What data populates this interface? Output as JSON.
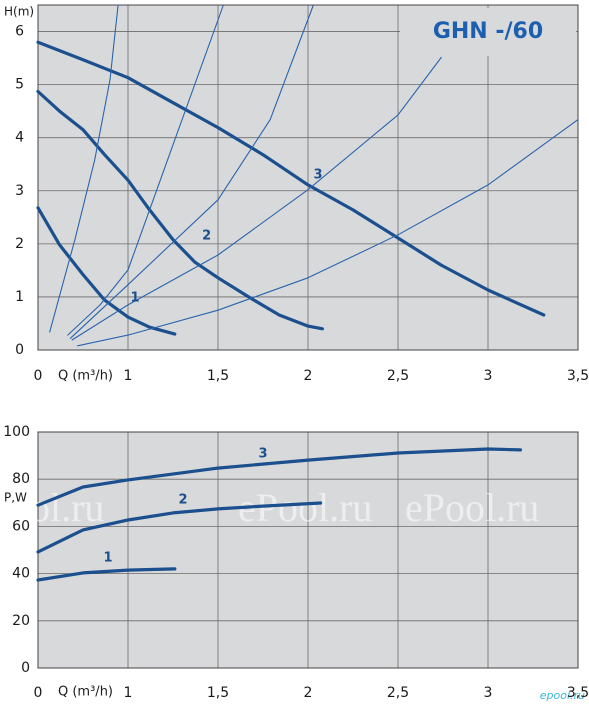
{
  "chart_data": [
    {
      "type": "line",
      "title": "GHN -/60",
      "ylabel": "H(m)",
      "xlabel": "Q (m³/h)",
      "xlim": [
        0,
        3.5
      ],
      "ylim": [
        0,
        6.5
      ],
      "xticks": [
        0,
        1,
        {
          "value": 1.5,
          "label": "1,5"
        },
        2,
        {
          "value": 2.5,
          "label": "2,5"
        },
        3,
        {
          "value": 3.5,
          "label": "3,5"
        }
      ],
      "yticks": [
        0,
        1,
        2,
        3,
        4,
        5,
        6
      ],
      "grid": true,
      "series": [
        {
          "name": "1",
          "color": "#1b4f8e",
          "x": [
            0,
            0.24,
            0.5,
            0.74,
            1.0,
            1.12,
            1.26
          ],
          "values": [
            2.68,
            1.98,
            1.42,
            0.94,
            0.62,
            0.43,
            0.3
          ]
        },
        {
          "name": "2",
          "color": "#1b4f8e",
          "x": [
            0,
            0.24,
            0.5,
            0.74,
            1.0,
            1.12,
            1.25,
            1.37,
            1.5,
            1.68,
            1.84,
            2.0,
            2.08
          ],
          "values": [
            4.87,
            4.5,
            4.15,
            3.68,
            3.2,
            2.64,
            2.08,
            1.66,
            1.36,
            0.98,
            0.66,
            0.45,
            0.4
          ]
        },
        {
          "name": "3",
          "color": "#1b4f8e",
          "x": [
            0,
            0.5,
            1.0,
            1.25,
            1.5,
            1.75,
            2.0,
            2.25,
            2.5,
            2.74,
            3.0,
            3.31
          ],
          "values": [
            5.8,
            5.47,
            5.13,
            4.66,
            4.19,
            3.68,
            3.11,
            2.64,
            2.11,
            1.6,
            1.13,
            0.66
          ]
        },
        {
          "color": "#2a64ad",
          "x": [
            0.13,
            0.41,
            0.63,
            0.8,
            0.89
          ],
          "values": [
            0.34,
            2.08,
            3.58,
            5.09,
            6.5
          ]
        },
        {
          "color": "#2a64ad",
          "x": [
            0.33,
            0.69,
            1.0,
            1.26,
            1.53
          ],
          "values": [
            0.28,
            0.85,
            1.51,
            3.96,
            6.5
          ]
        },
        {
          "color": "#2a64ad",
          "x": [
            0.36,
            1.0,
            1.5,
            1.79,
            2.03
          ],
          "values": [
            0.22,
            1.23,
            2.83,
            4.34,
            6.5
          ]
        },
        {
          "color": "#2a64ad",
          "x": [
            0.38,
            1.0,
            1.5,
            2.0,
            2.5,
            2.74
          ],
          "values": [
            0.19,
            0.85,
            1.79,
            3.02,
            4.43,
            5.51
          ]
        },
        {
          "color": "#2a64ad",
          "x": [
            0.44,
            1.0,
            1.5,
            2.0,
            2.5,
            3.0,
            3.5
          ],
          "values": [
            0.08,
            0.28,
            0.75,
            1.36,
            2.17,
            3.11,
            4.34
          ]
        }
      ]
    },
    {
      "type": "line",
      "ylabel": "P,W",
      "xlabel": "Q (m³/h)",
      "xlim": [
        0,
        3.5
      ],
      "ylim": [
        0,
        100
      ],
      "xticks": [
        0,
        1,
        {
          "value": 1.5,
          "label": "1,5"
        },
        2,
        {
          "value": 2.5,
          "label": "2,5"
        },
        3,
        {
          "value": 3.5,
          "label": "3,5"
        }
      ],
      "yticks": [
        0,
        20,
        40,
        60,
        80,
        100
      ],
      "grid": true,
      "series": [
        {
          "name": "1",
          "color": "#1b4f8e",
          "x": [
            0,
            0.5,
            1.0,
            1.26
          ],
          "values": [
            37.3,
            40.3,
            41.5,
            42
          ]
        },
        {
          "name": "2",
          "color": "#1b4f8e",
          "x": [
            0,
            0.5,
            1.0,
            1.25,
            1.5,
            1.75,
            2.07
          ],
          "values": [
            49.2,
            58.5,
            62.7,
            65.7,
            67.4,
            68.6,
            69.9
          ]
        },
        {
          "name": "3",
          "color": "#1b4f8e",
          "x": [
            0,
            0.5,
            1.0,
            1.5,
            2.0,
            2.5,
            3.0,
            3.18
          ],
          "values": [
            69,
            76.7,
            79.7,
            84.7,
            88.1,
            91.1,
            92.8,
            92.4
          ]
        }
      ]
    }
  ],
  "watermark": "ePool.ru",
  "logo": "epool.ru"
}
